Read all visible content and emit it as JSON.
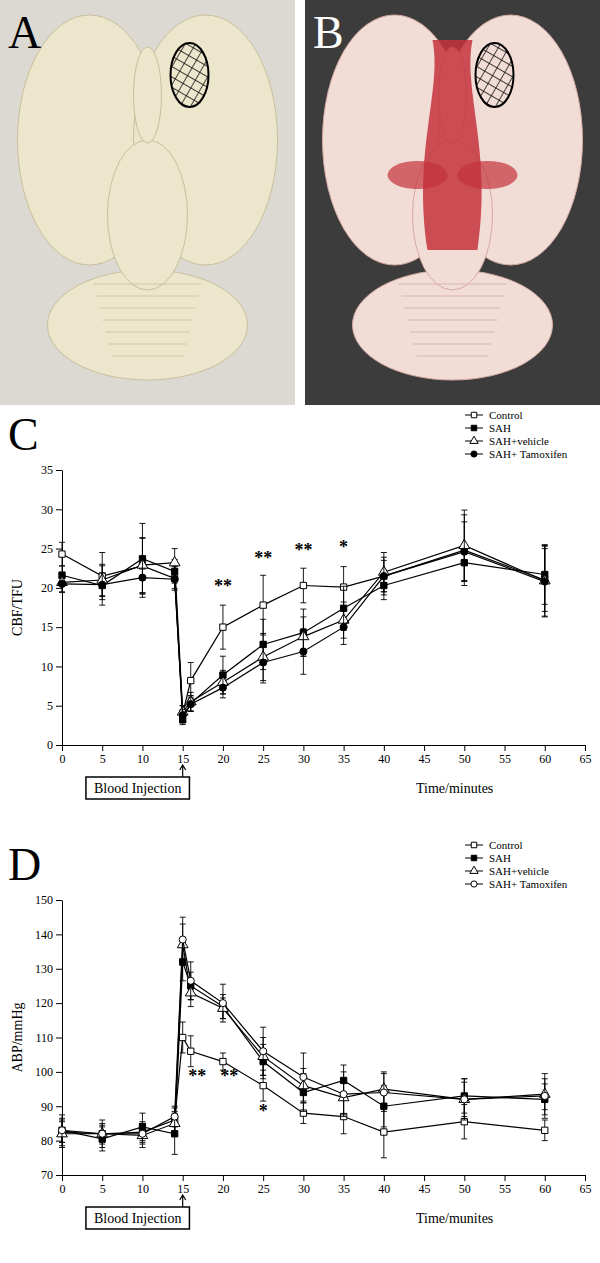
{
  "panel_labels": [
    "A",
    "B",
    "C",
    "D"
  ],
  "chart_data": [
    {
      "type": "line",
      "x_label": "Time/minutes",
      "y_label": "CBF/TFU",
      "x": [
        0,
        5,
        10,
        14,
        15,
        16,
        20,
        25,
        30,
        35,
        40,
        50,
        60
      ],
      "xlim": [
        0,
        65
      ],
      "xticks": [
        0,
        5,
        10,
        15,
        20,
        25,
        30,
        35,
        40,
        45,
        50,
        55,
        60,
        65
      ],
      "ylim": [
        0,
        35
      ],
      "yticks": [
        0,
        5,
        10,
        15,
        20,
        25,
        30,
        35
      ],
      "grid": false,
      "legend": "upper right",
      "series": [
        {
          "name": "Control",
          "color": "#000000",
          "marker": "square-open",
          "values": [
            24.3,
            21.5,
            22.8,
            21.2,
            4.0,
            8.2,
            15.0,
            17.8,
            20.3,
            20.1,
            21.5,
            24.8,
            21.0
          ],
          "errors": [
            1.5,
            3.0,
            3.5,
            1.5,
            1.0,
            2.3,
            2.8,
            3.8,
            2.2,
            2.6,
            2.0,
            4.5,
            4.0
          ]
        },
        {
          "name": "SAH",
          "color": "#000000",
          "marker": "square",
          "values": [
            21.6,
            20.3,
            23.7,
            22.1,
            3.2,
            5.3,
            8.9,
            12.8,
            14.3,
            17.4,
            20.3,
            23.2,
            21.7
          ],
          "errors": [
            1.2,
            2.5,
            4.5,
            1.5,
            0.6,
            1.0,
            2.4,
            3.2,
            3.0,
            2.8,
            1.8,
            2.3,
            3.8
          ]
        },
        {
          "name": "SAH+vehicle",
          "color": "#000000",
          "marker": "triangle-open",
          "values": [
            20.7,
            21.0,
            22.9,
            23.2,
            4.2,
            5.5,
            8.0,
            11.2,
            13.8,
            15.9,
            22.0,
            25.4,
            20.9
          ],
          "errors": [
            1.3,
            2.0,
            3.5,
            1.8,
            0.8,
            1.2,
            1.5,
            3.0,
            2.5,
            2.3,
            2.5,
            4.5,
            4.5
          ]
        },
        {
          "name": "SAH+ Tamoxifen",
          "color": "#000000",
          "marker": "circle",
          "values": [
            20.5,
            20.4,
            21.3,
            21.1,
            3.8,
            5.2,
            7.3,
            10.5,
            11.9,
            15.0,
            21.5,
            24.6,
            20.8
          ],
          "errors": [
            1.0,
            1.5,
            2.5,
            1.2,
            0.7,
            0.9,
            1.3,
            2.6,
            2.9,
            2.2,
            2.4,
            3.8,
            4.5
          ]
        }
      ],
      "annotations": [
        {
          "text": "**",
          "x": 20,
          "y": 19.5
        },
        {
          "text": "**",
          "x": 25,
          "y": 23
        },
        {
          "text": "**",
          "x": 30,
          "y": 24
        },
        {
          "text": "*",
          "x": 35,
          "y": 24.5
        },
        {
          "text": "Blood Injection",
          "x": 15
        }
      ]
    },
    {
      "type": "line",
      "x_label": "Time/munites",
      "y_label": "ABP/mmHg",
      "x": [
        0,
        5,
        10,
        14,
        15,
        16,
        20,
        25,
        30,
        35,
        40,
        50,
        60
      ],
      "xlim": [
        0,
        65
      ],
      "xticks": [
        0,
        5,
        10,
        15,
        20,
        25,
        30,
        35,
        40,
        45,
        50,
        55,
        60,
        65
      ],
      "ylim": [
        70,
        150
      ],
      "yticks": [
        70,
        80,
        90,
        100,
        110,
        120,
        130,
        140,
        150
      ],
      "grid": false,
      "legend": "upper right",
      "series": [
        {
          "name": "Control",
          "color": "#000000",
          "marker": "square-open",
          "values": [
            82.5,
            82.0,
            82.5,
            86.0,
            110.0,
            106.0,
            103.0,
            96.0,
            88.0,
            87.0,
            82.5,
            85.5,
            83.0
          ],
          "errors": [
            3.0,
            2.5,
            3.0,
            3.5,
            4.5,
            4.5,
            2.5,
            4.5,
            3.0,
            5.0,
            7.5,
            5.0,
            3.0
          ]
        },
        {
          "name": "SAH",
          "color": "#000000",
          "marker": "square",
          "values": [
            83.0,
            80.5,
            84.0,
            82.0,
            132.0,
            125.0,
            119.0,
            103.0,
            94.0,
            97.5,
            90.0,
            93.0,
            92.0
          ],
          "errors": [
            4.5,
            3.5,
            4.0,
            6.0,
            5.5,
            4.0,
            3.5,
            5.0,
            5.5,
            4.5,
            6.0,
            5.0,
            4.5
          ]
        },
        {
          "name": "SAH+vehicle",
          "color": "#000000",
          "marker": "triangle-open",
          "values": [
            82.0,
            82.0,
            81.5,
            85.0,
            137.0,
            123.0,
            118.5,
            104.5,
            96.0,
            92.5,
            95.0,
            92.0,
            93.5
          ],
          "errors": [
            4.0,
            3.0,
            3.5,
            3.5,
            6.0,
            4.0,
            3.0,
            5.5,
            5.0,
            5.0,
            5.0,
            5.0,
            4.5
          ]
        },
        {
          "name": "SAH+ Tamoxifen",
          "color": "#000000",
          "marker": "circle-open",
          "values": [
            83.0,
            82.0,
            82.0,
            87.0,
            138.5,
            126.5,
            120.0,
            106.0,
            98.5,
            93.5,
            94.0,
            92.0,
            93.0
          ],
          "errors": [
            3.5,
            4.0,
            3.0,
            3.0,
            6.5,
            5.5,
            5.5,
            7.0,
            7.0,
            6.5,
            5.5,
            6.0,
            6.5
          ]
        }
      ],
      "annotations": [
        {
          "text": "**",
          "x": 16.8,
          "y": 97
        },
        {
          "text": "**",
          "x": 20.8,
          "y": 97
        },
        {
          "text": "*",
          "x": 25,
          "y": 87
        },
        {
          "text": "Blood Injection",
          "x": 15
        }
      ]
    }
  ]
}
